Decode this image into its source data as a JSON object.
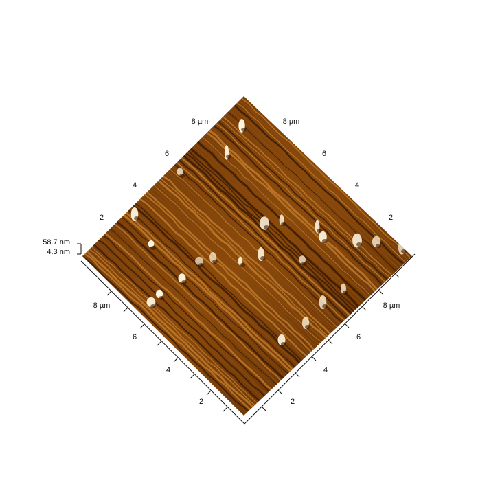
{
  "figure": {
    "type": "afm-3d-topography",
    "surface_colors": {
      "dark": "#3b1a04",
      "mid": "#8a4a0c",
      "light": "#c07a2a",
      "highlight": "#fff6e0"
    },
    "axis_color": "#111111",
    "z_scale": {
      "max_label": "58.7 nm",
      "min_label": "4.3 nm"
    },
    "back_axes": {
      "left_ticks": [
        "2",
        "4",
        "6",
        "8 µm"
      ],
      "right_ticks": [
        "8 µm",
        "6",
        "4",
        "2"
      ]
    },
    "front_axes": {
      "left_ticks": [
        "8 µm",
        "6",
        "4",
        "2"
      ],
      "right_ticks": [
        "2",
        "4",
        "6",
        "8 µm"
      ]
    }
  }
}
